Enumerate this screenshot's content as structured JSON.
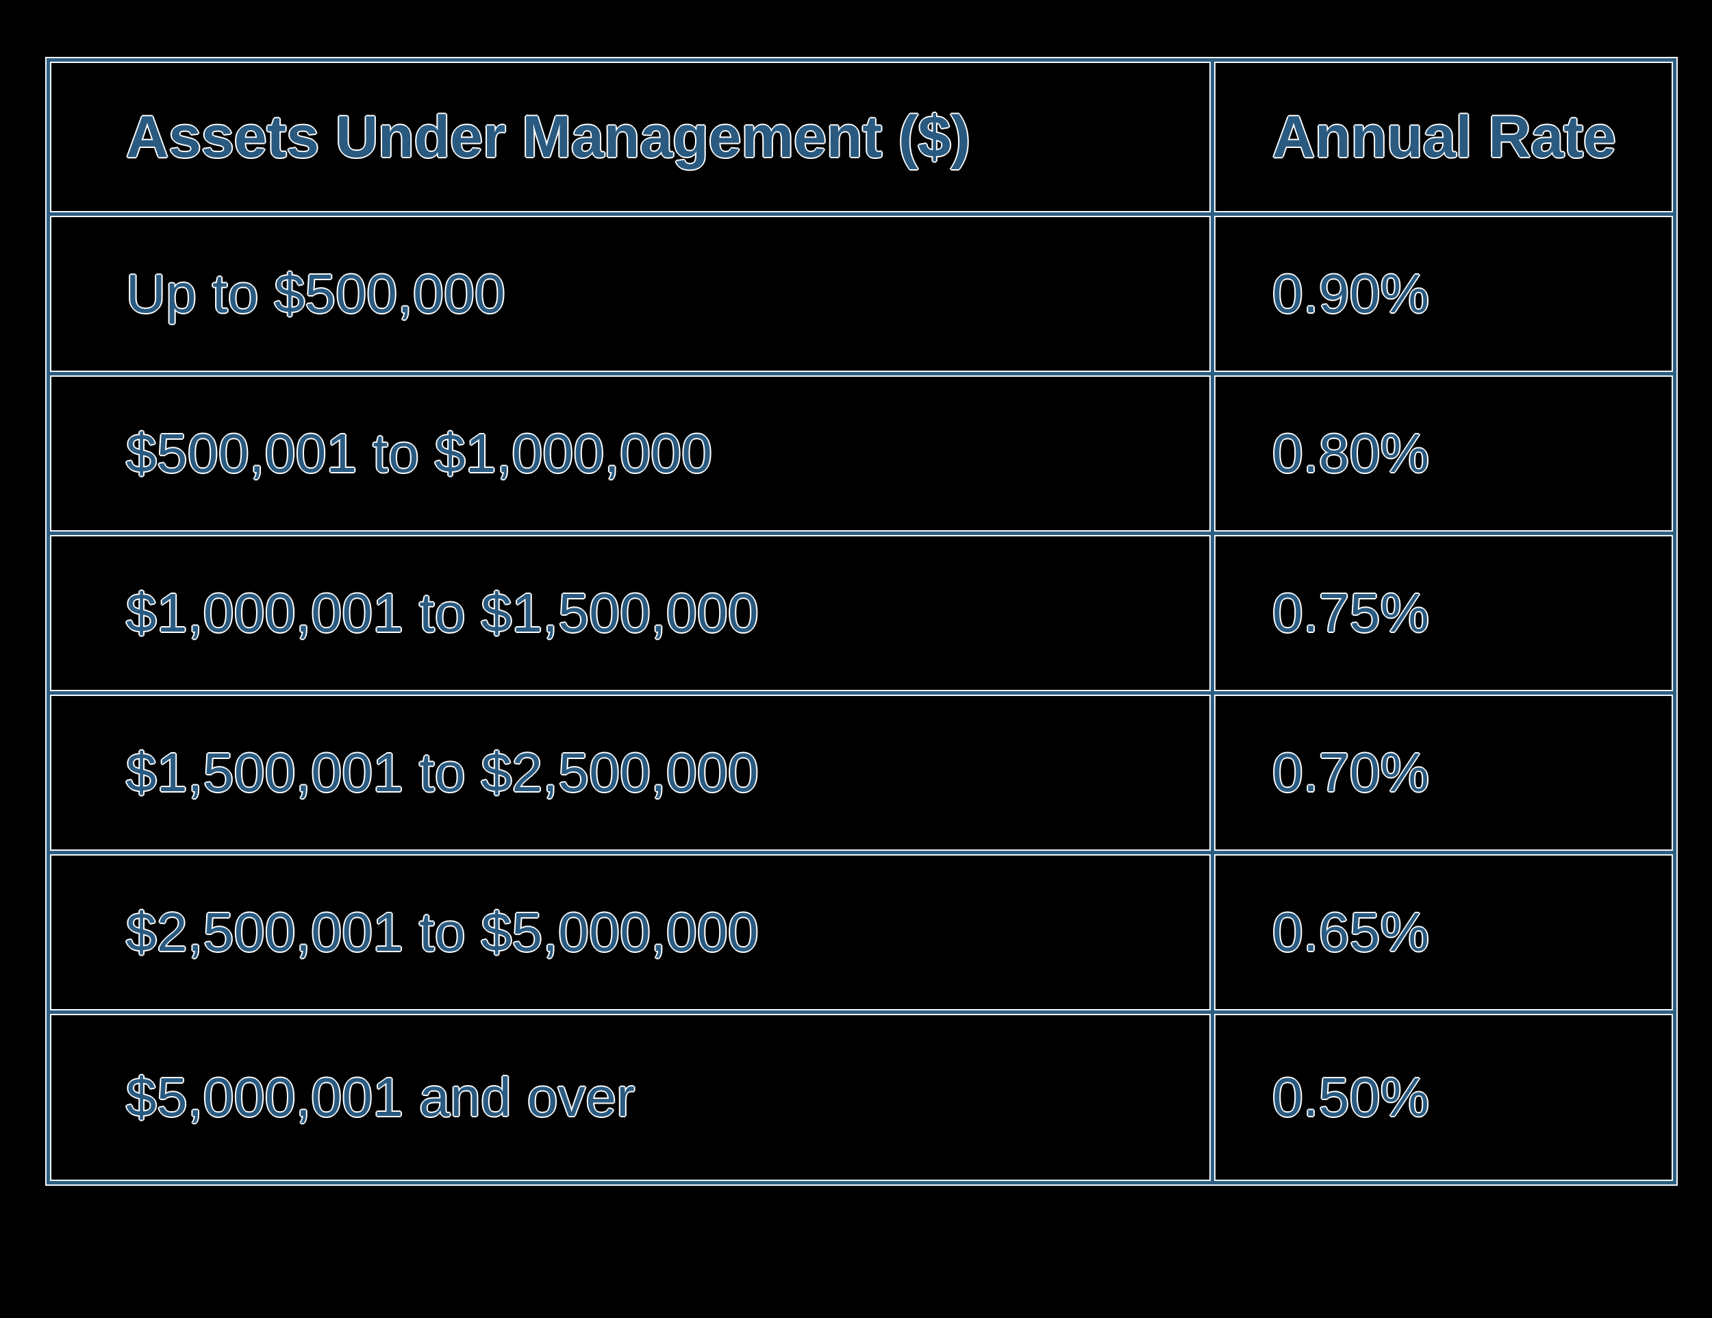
{
  "table": {
    "columns": [
      {
        "label": "Assets Under Management ($)"
      },
      {
        "label": "Annual Rate"
      }
    ],
    "rows": [
      {
        "aum": "Up to $500,000",
        "rate": "0.90%"
      },
      {
        "aum": "$500,001 to $1,000,000",
        "rate": "0.80%"
      },
      {
        "aum": "$1,000,001 to $1,500,000",
        "rate": "0.75%"
      },
      {
        "aum": "$1,500,001 to $2,500,000",
        "rate": "0.70%"
      },
      {
        "aum": "$2,500,001 to $5,000,000",
        "rate": "0.65%"
      },
      {
        "aum": "$5,000,001 and over",
        "rate": "0.50%"
      }
    ],
    "colors": {
      "text": "#2a5a80",
      "border": "#2d5f82",
      "fringe": "#ffffff",
      "background": "#000000"
    }
  },
  "chart_data": {
    "type": "table",
    "title": "",
    "columns": [
      "Assets Under Management ($)",
      "Annual Rate"
    ],
    "rows": [
      [
        "Up to $500,000",
        "0.90%"
      ],
      [
        "$500,001 to $1,000,000",
        "0.80%"
      ],
      [
        "$1,000,001 to $1,500,000",
        "0.75%"
      ],
      [
        "$1,500,001 to $2,500,000",
        "0.70%"
      ],
      [
        "$2,500,001 to $5,000,000",
        "0.65%"
      ],
      [
        "$5,000,001 and over",
        "0.50%"
      ]
    ],
    "annual_rate_percent_by_tier": [
      0.9,
      0.8,
      0.75,
      0.7,
      0.65,
      0.5
    ]
  }
}
